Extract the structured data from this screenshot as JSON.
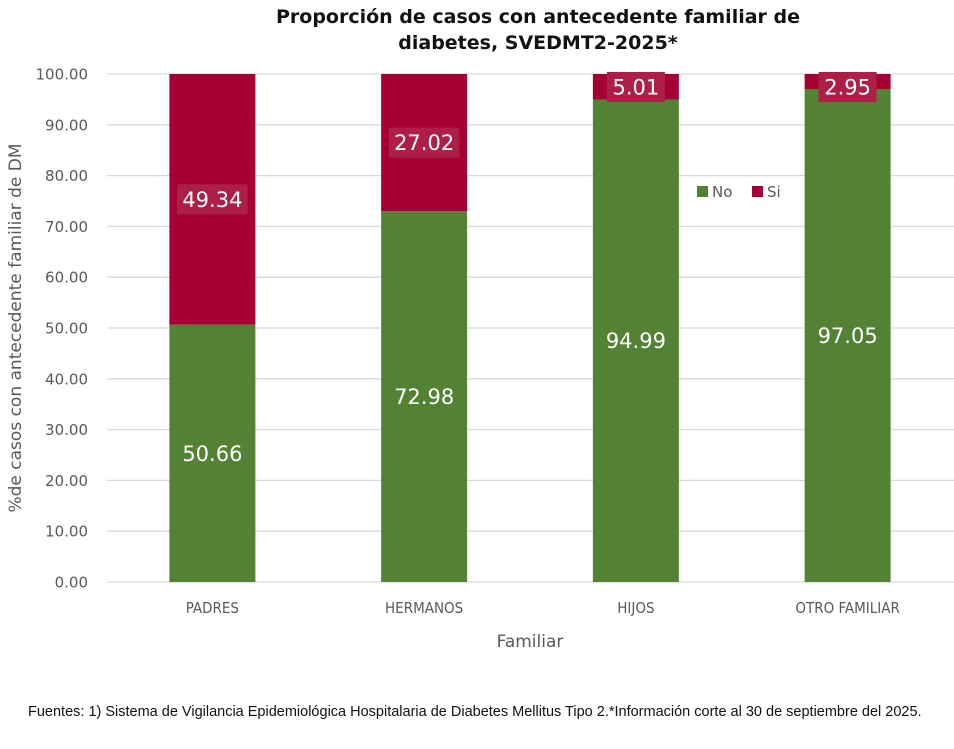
{
  "chart_data": {
    "type": "bar",
    "stacked": true,
    "title_lines": [
      "Proporción de casos con antecedente familiar de",
      "diabetes, SVEDMT2-2025*"
    ],
    "xlabel": "Familiar",
    "ylabel": "%de casos con antecedente familiar de DM",
    "ylim": [
      0,
      100
    ],
    "yticks": [
      "0.00",
      "10.00",
      "20.00",
      "30.00",
      "40.00",
      "50.00",
      "60.00",
      "70.00",
      "80.00",
      "90.00",
      "100.00"
    ],
    "categories": [
      "PADRES",
      "HERMANOS",
      "HIJOS",
      "OTRO FAMILIAR"
    ],
    "series": [
      {
        "name": "No",
        "color": "#548235",
        "values": [
          50.66,
          72.98,
          94.99,
          97.05
        ],
        "labels": [
          "50.66",
          "72.98",
          "94.99",
          "97.05"
        ]
      },
      {
        "name": "Si",
        "color": "#A50034",
        "values": [
          49.34,
          27.02,
          5.01,
          2.95
        ],
        "labels": [
          "49.34",
          "27.02",
          "5.01",
          "2.95"
        ]
      }
    ],
    "legend": {
      "position": "right-inside",
      "entries": [
        "No",
        "Si"
      ]
    },
    "grid": true
  },
  "footer": {
    "text": "Fuentes: 1) Sistema de Vigilancia Epidemiológica Hospitalaria de Diabetes Mellitus Tipo 2.*Información corte al 30 de septiembre del 2025."
  }
}
